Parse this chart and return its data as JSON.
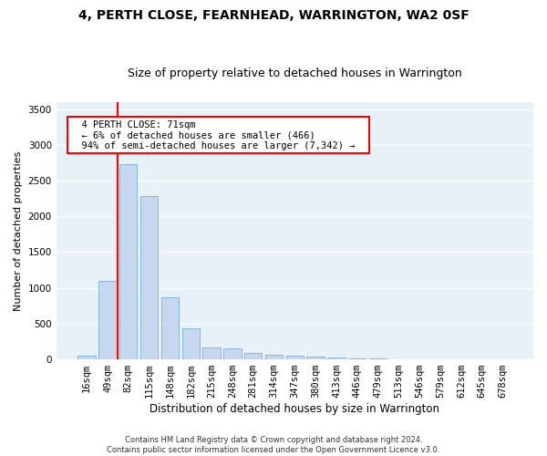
{
  "title": "4, PERTH CLOSE, FEARNHEAD, WARRINGTON, WA2 0SF",
  "subtitle": "Size of property relative to detached houses in Warrington",
  "xlabel": "Distribution of detached houses by size in Warrington",
  "ylabel": "Number of detached properties",
  "categories": [
    "16sqm",
    "49sqm",
    "82sqm",
    "115sqm",
    "148sqm",
    "182sqm",
    "215sqm",
    "248sqm",
    "281sqm",
    "314sqm",
    "347sqm",
    "380sqm",
    "413sqm",
    "446sqm",
    "479sqm",
    "513sqm",
    "546sqm",
    "579sqm",
    "612sqm",
    "645sqm",
    "678sqm"
  ],
  "values": [
    55,
    1100,
    2730,
    2280,
    870,
    430,
    170,
    160,
    95,
    70,
    55,
    40,
    30,
    20,
    10,
    5,
    5,
    3,
    2,
    1,
    1
  ],
  "bar_color": "#c5d8f0",
  "bar_edge_color": "#7aaed6",
  "ylim": [
    0,
    3600
  ],
  "yticks": [
    0,
    500,
    1000,
    1500,
    2000,
    2500,
    3000,
    3500
  ],
  "vline_x": 1.5,
  "annotation_text": "  4 PERTH CLOSE: 71sqm  \n  ← 6% of detached houses are smaller (466)  \n  94% of semi-detached houses are larger (7,342) →  ",
  "annotation_box_color": "white",
  "annotation_box_edge_color": "red",
  "vline_color": "red",
  "footer_line1": "Contains HM Land Registry data © Crown copyright and database right 2024.",
  "footer_line2": "Contains public sector information licensed under the Open Government Licence v3.0.",
  "background_color": "#e8f0f8",
  "grid_color": "#ffffff",
  "title_fontsize": 10,
  "subtitle_fontsize": 9,
  "xlabel_fontsize": 8.5,
  "ylabel_fontsize": 8,
  "tick_fontsize": 7.5,
  "annotation_fontsize": 7.5,
  "footer_fontsize": 6
}
